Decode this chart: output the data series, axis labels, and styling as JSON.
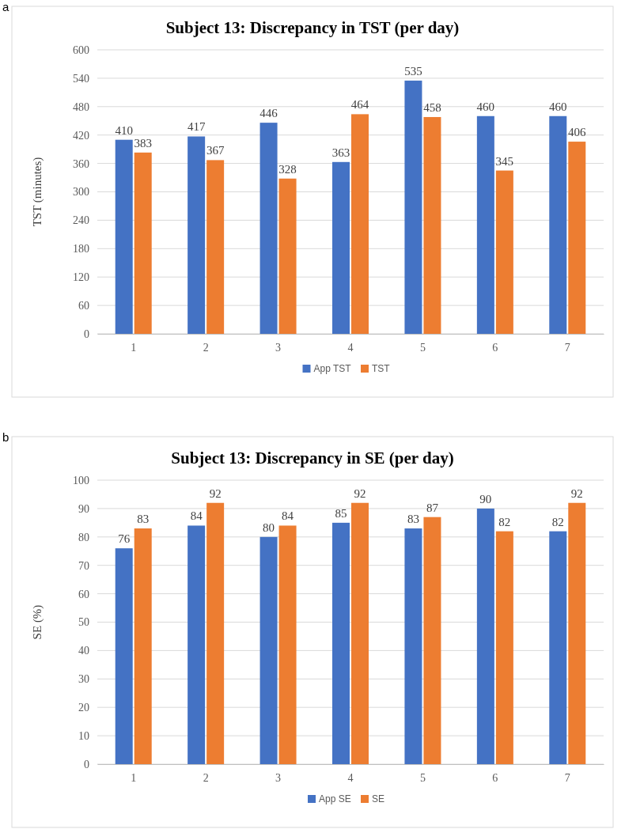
{
  "chart_data": [
    {
      "type": "bar",
      "title": "Subject 13: Discrepancy in TST (per day)",
      "ylabel": "TST (minutes)",
      "annotations": [
        "a"
      ],
      "categories": [
        "1",
        "2",
        "3",
        "4",
        "5",
        "6",
        "7"
      ],
      "series": [
        {
          "name": "App TST",
          "color": "#4472c4",
          "values": [
            410,
            417,
            446,
            363,
            535,
            460,
            460
          ]
        },
        {
          "name": "TST",
          "color": "#ed7d31",
          "values": [
            383,
            367,
            328,
            464,
            458,
            345,
            406
          ]
        }
      ],
      "ylim": [
        0,
        600
      ],
      "yticks": [
        0,
        60,
        120,
        180,
        240,
        300,
        360,
        420,
        480,
        540,
        600
      ],
      "grid": "y",
      "legend": "bottom",
      "data_labels": true
    },
    {
      "type": "bar",
      "title": "Subject 13: Discrepancy in SE (per day)",
      "ylabel": "SE (%)",
      "annotations": [
        "b"
      ],
      "categories": [
        "1",
        "2",
        "3",
        "4",
        "5",
        "6",
        "7"
      ],
      "series": [
        {
          "name": "App SE",
          "color": "#4472c4",
          "values": [
            76,
            84,
            80,
            85,
            83,
            90,
            82
          ]
        },
        {
          "name": "SE",
          "color": "#ed7d31",
          "values": [
            83,
            92,
            84,
            92,
            87,
            82,
            92
          ]
        }
      ],
      "ylim": [
        0,
        100
      ],
      "yticks": [
        0,
        10,
        20,
        30,
        40,
        50,
        60,
        70,
        80,
        90,
        100
      ],
      "grid": "y",
      "legend": "bottom",
      "data_labels": true
    }
  ]
}
